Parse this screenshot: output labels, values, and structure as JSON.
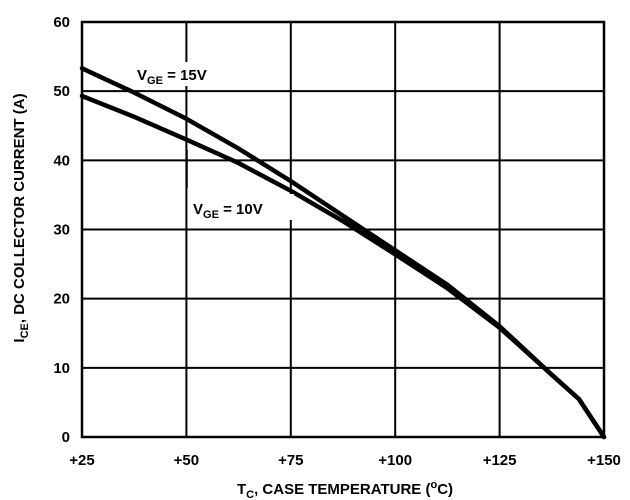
{
  "chart_data": {
    "type": "line",
    "xlabel": {
      "main": "T",
      "sub": "C",
      "rest": ", CASE TEMPERATURE (",
      "sup": "o",
      "end": "C)"
    },
    "ylabel": {
      "main": "I",
      "sub": "CE",
      "rest": ", DC COLLECTOR CURRENT (A)"
    },
    "xlim": [
      25,
      150
    ],
    "ylim": [
      0,
      60
    ],
    "grid": true,
    "x_ticks": [
      {
        "value": 25,
        "label": "+25"
      },
      {
        "value": 50,
        "label": "+50"
      },
      {
        "value": 75,
        "label": "+75"
      },
      {
        "value": 100,
        "label": "+100"
      },
      {
        "value": 125,
        "label": "+125"
      },
      {
        "value": 150,
        "label": "+150"
      }
    ],
    "y_ticks": [
      {
        "value": 0,
        "label": "0"
      },
      {
        "value": 10,
        "label": "10"
      },
      {
        "value": 20,
        "label": "20"
      },
      {
        "value": 30,
        "label": "30"
      },
      {
        "value": 40,
        "label": "40"
      },
      {
        "value": 50,
        "label": "50"
      },
      {
        "value": 60,
        "label": "60"
      }
    ],
    "series": [
      {
        "name": "VGE = 15V",
        "label": {
          "main": "V",
          "sub": "GE",
          "rest": " = 15V"
        },
        "x": [
          25,
          37.5,
          50,
          62.5,
          75,
          87.5,
          100,
          112.5,
          125,
          137.5,
          144,
          150
        ],
        "y": [
          53.3,
          49.8,
          46.0,
          41.7,
          37.0,
          32.0,
          27.0,
          22.0,
          16.0,
          9.0,
          5.5,
          0.0
        ]
      },
      {
        "name": "VGE = 10V",
        "label": {
          "main": "V",
          "sub": "GE",
          "rest": " = 10V"
        },
        "x": [
          25,
          37.5,
          50,
          62.5,
          75,
          87.5,
          100,
          112.5,
          125,
          137.5,
          144,
          150
        ],
        "y": [
          49.3,
          46.3,
          43.0,
          39.6,
          35.6,
          31.2,
          26.4,
          21.5,
          15.8,
          9.0,
          5.5,
          0.0
        ]
      }
    ]
  }
}
